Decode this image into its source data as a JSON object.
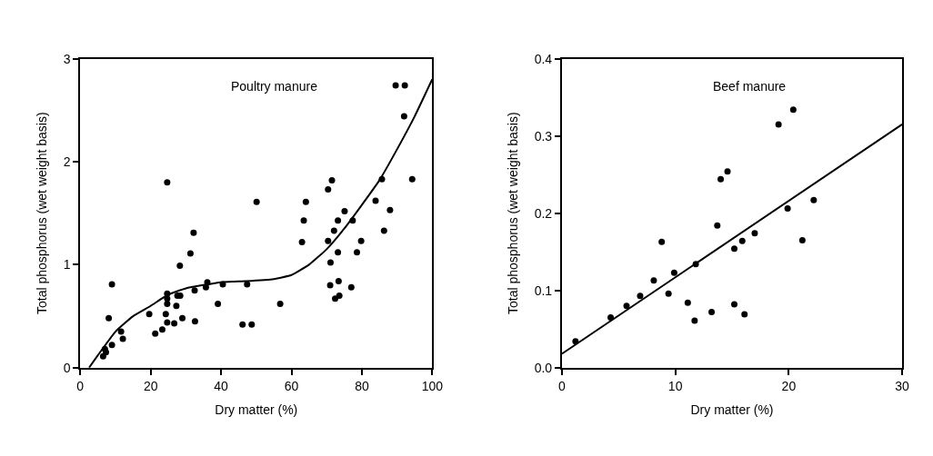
{
  "chart_data": [
    {
      "type": "scatter",
      "xlabel": "Dry matter (%)",
      "ylabel": "Total phosphorus (wet weight basis)",
      "annotations": [
        "Poultry manure"
      ],
      "xlim": [
        0,
        100
      ],
      "xticks": [
        0,
        20,
        40,
        60,
        80,
        100
      ],
      "ylim": [
        0,
        3
      ],
      "yticks": [
        0,
        1,
        2,
        3
      ],
      "grid": false,
      "legend": false,
      "marker": "circle",
      "series": [
        {
          "color": "#000000",
          "x": [
            89.6,
            92.2,
            92,
            94.3,
            24.7,
            50.1,
            64.1,
            63.5,
            63,
            70.4,
            71.5,
            73.2,
            75.1,
            72.1,
            70.4,
            77.4,
            79.8,
            73.2,
            78.6,
            71.1,
            83.9,
            85.7,
            88,
            86.3,
            31.3,
            32.2,
            28.3,
            9,
            8.1,
            6.5,
            7.3,
            7,
            9,
            11.6,
            12.1,
            19.6,
            21.3,
            23.3,
            24.3,
            24.7,
            26.7,
            24.7,
            24.7,
            24.7,
            27.3,
            27.6,
            28.4,
            29,
            32.5,
            32.6,
            35.7,
            36.1,
            39.1,
            40.5,
            46.1,
            48.7,
            47.4,
            56.8,
            71,
            73.4,
            73.6,
            72.4,
            77
          ],
          "values": [
            2.74,
            2.74,
            2.44,
            1.83,
            1.8,
            1.61,
            1.61,
            1.43,
            1.22,
            1.73,
            1.82,
            1.43,
            1.52,
            1.33,
            1.23,
            1.43,
            1.23,
            1.12,
            1.12,
            1.02,
            1.62,
            1.83,
            1.53,
            1.33,
            1.11,
            1.31,
            0.99,
            0.81,
            0.48,
            0.11,
            0.15,
            0.18,
            0.22,
            0.35,
            0.28,
            0.52,
            0.33,
            0.37,
            0.52,
            0.44,
            0.43,
            0.72,
            0.67,
            0.62,
            0.6,
            0.7,
            0.7,
            0.48,
            0.75,
            0.45,
            0.78,
            0.83,
            0.62,
            0.81,
            0.42,
            0.42,
            0.81,
            0.62,
            0.8,
            0.84,
            0.7,
            0.67,
            0.78
          ]
        },
        {
          "type": "line",
          "color": "#000000",
          "marker": "none",
          "line_style": "solid",
          "x": [
            2.5,
            5,
            10,
            15,
            20,
            25,
            30,
            40,
            47,
            55,
            60,
            65,
            70,
            75,
            80,
            85,
            90,
            95,
            100
          ],
          "values": [
            0,
            0.12,
            0.35,
            0.5,
            0.6,
            0.71,
            0.77,
            0.83,
            0.84,
            0.86,
            0.9,
            1.0,
            1.15,
            1.35,
            1.58,
            1.82,
            2.12,
            2.44,
            2.8
          ]
        }
      ]
    },
    {
      "type": "scatter",
      "xlabel": "Dry matter (%)",
      "ylabel": "Total phosphorus (wet weight basis)",
      "annotations": [
        "Beef manure"
      ],
      "xlim": [
        0,
        30
      ],
      "xticks": [
        0,
        10,
        20,
        30
      ],
      "ylim": [
        0,
        0.4
      ],
      "yticks": [
        {
          "value": 0,
          "label": "0.0"
        },
        0.1,
        0.2,
        0.3,
        0.4
      ],
      "grid": false,
      "legend": false,
      "marker": "circle",
      "series": [
        {
          "color": "#000000",
          "x": [
            8.8,
            9.9,
            11.8,
            13.7,
            14,
            14.6,
            15.2,
            15.9,
            17,
            19.1,
            20.4,
            19.9,
            22.2,
            21.2,
            1.2,
            4.3,
            5.7,
            6.9,
            8.1,
            9.4,
            11.1,
            11.7,
            13.2,
            15.2,
            16.1
          ],
          "values": [
            0.163,
            0.123,
            0.134,
            0.184,
            0.244,
            0.254,
            0.154,
            0.164,
            0.174,
            0.315,
            0.334,
            0.206,
            0.217,
            0.165,
            0.034,
            0.065,
            0.08,
            0.093,
            0.113,
            0.096,
            0.084,
            0.061,
            0.072,
            0.082,
            0.069
          ]
        },
        {
          "type": "line",
          "color": "#000000",
          "marker": "none",
          "line_style": "solid",
          "x": [
            0,
            30
          ],
          "values": [
            0.018,
            0.315
          ]
        }
      ]
    }
  ]
}
